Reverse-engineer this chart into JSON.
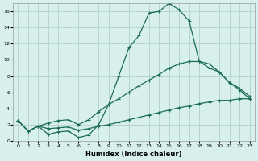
{
  "xlabel": "Humidex (Indice chaleur)",
  "xlim": [
    -0.5,
    23.5
  ],
  "ylim": [
    0,
    17
  ],
  "xticks": [
    0,
    1,
    2,
    3,
    4,
    5,
    6,
    7,
    8,
    9,
    10,
    11,
    12,
    13,
    14,
    15,
    16,
    17,
    18,
    19,
    20,
    21,
    22,
    23
  ],
  "yticks": [
    0,
    2,
    4,
    6,
    8,
    10,
    12,
    14,
    16
  ],
  "bg_color": "#d8f0ec",
  "grid_color": "#b8d4ce",
  "line_color": "#1a6b5a",
  "line1_x": [
    0,
    1,
    2,
    3,
    4,
    5,
    6,
    7,
    8,
    9,
    10,
    11,
    12,
    13,
    14,
    15,
    16,
    17,
    18,
    19,
    20,
    21,
    22,
    23
  ],
  "line1_y": [
    2.5,
    1.2,
    1.8,
    0.8,
    1.1,
    1.2,
    0.4,
    0.7,
    2.0,
    4.5,
    8.0,
    11.5,
    13.0,
    15.8,
    16.0,
    17.0,
    16.2,
    14.8,
    9.8,
    9.5,
    8.5,
    7.2,
    6.3,
    5.2
  ],
  "line2_x": [
    0,
    1,
    2,
    3,
    4,
    5,
    6,
    7,
    8,
    9,
    10,
    11,
    12,
    13,
    14,
    15,
    16,
    17,
    18,
    19,
    20,
    21,
    22,
    23
  ],
  "line2_y": [
    2.5,
    1.2,
    1.8,
    2.2,
    2.5,
    2.6,
    2.0,
    2.6,
    3.6,
    4.5,
    5.2,
    6.0,
    6.8,
    7.5,
    8.2,
    9.0,
    9.5,
    9.8,
    9.8,
    9.0,
    8.5,
    7.2,
    6.5,
    5.5
  ],
  "line3_x": [
    0,
    1,
    2,
    3,
    4,
    5,
    6,
    7,
    8,
    9,
    10,
    11,
    12,
    13,
    14,
    15,
    16,
    17,
    18,
    19,
    20,
    21,
    22,
    23
  ],
  "line3_y": [
    2.5,
    1.2,
    1.8,
    1.5,
    1.6,
    1.7,
    1.3,
    1.5,
    1.8,
    2.0,
    2.3,
    2.6,
    2.9,
    3.2,
    3.5,
    3.8,
    4.1,
    4.3,
    4.6,
    4.8,
    5.0,
    5.0,
    5.2,
    5.2
  ]
}
